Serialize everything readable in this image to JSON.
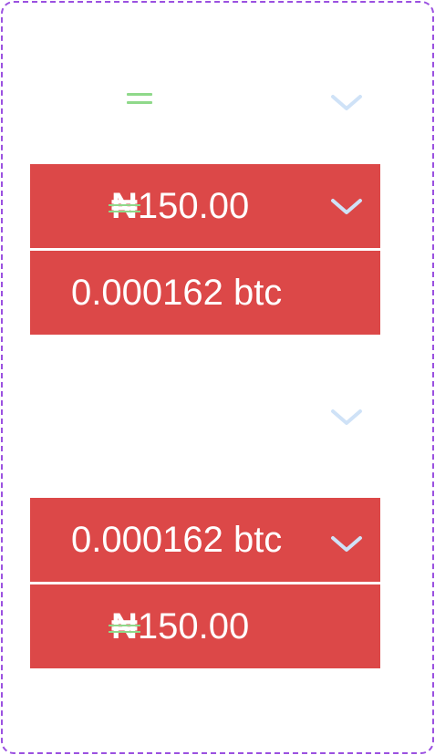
{
  "converter_top": {
    "source_amount": "150.00",
    "source_currency_symbol": "₦",
    "result_value": "0.000162 btc"
  },
  "converter_bottom": {
    "source_value": "0.000162 btc",
    "result_amount": "150.00",
    "result_currency_symbol": "₦"
  },
  "icons": {
    "equals": "equals-icon",
    "dropdown": "chevron-down-icon"
  },
  "colors": {
    "panel_background": "#dc4848",
    "text": "#ffffff",
    "chevron": "#cfe2f7",
    "equals_icon": "#8fd98a",
    "frame_border": "#9b51e0"
  }
}
